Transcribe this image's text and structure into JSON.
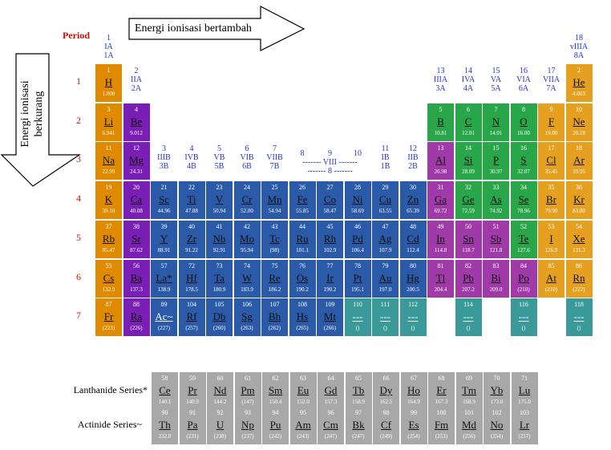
{
  "labels": {
    "period": "Period",
    "arrow_right": "Energi ionisasi bertambah",
    "arrow_down_line1": "Energi ionisasi",
    "arrow_down_line2": "berkurang",
    "lanthanide": "Lanthanide Series*",
    "actinide": "Actinide Series~"
  },
  "periods": [
    "1",
    "2",
    "3",
    "4",
    "5",
    "6",
    "7"
  ],
  "groups": [
    {
      "col": 1,
      "row": 0,
      "lines": [
        "1",
        "IA",
        "1A"
      ]
    },
    {
      "col": 2,
      "row": 1,
      "lines": [
        "2",
        "IIA",
        "2A"
      ]
    },
    {
      "col": 3,
      "row": 3,
      "lines": [
        "3",
        "IIIB",
        "3B"
      ]
    },
    {
      "col": 4,
      "row": 3,
      "lines": [
        "4",
        "IVB",
        "4B"
      ]
    },
    {
      "col": 5,
      "row": 3,
      "lines": [
        "5",
        "VB",
        "5B"
      ]
    },
    {
      "col": 6,
      "row": 3,
      "lines": [
        "6",
        "VIB",
        "6B"
      ]
    },
    {
      "col": 7,
      "row": 3,
      "lines": [
        "7",
        "VIIB",
        "7B"
      ]
    },
    {
      "col": 8,
      "row": 3,
      "lines": [
        "8",
        ""
      ]
    },
    {
      "col": 9,
      "row": 3,
      "lines": [
        "9",
        "------- VIII -------",
        "------- 8 -------"
      ]
    },
    {
      "col": 10,
      "row": 3,
      "lines": [
        "10",
        ""
      ]
    },
    {
      "col": 11,
      "row": 3,
      "lines": [
        "11",
        "IB",
        "1B"
      ]
    },
    {
      "col": 12,
      "row": 3,
      "lines": [
        "12",
        "IIB",
        "2B"
      ]
    },
    {
      "col": 13,
      "row": 1,
      "lines": [
        "13",
        "IIIA",
        "3A"
      ]
    },
    {
      "col": 14,
      "row": 1,
      "lines": [
        "14",
        "IVA",
        "4A"
      ]
    },
    {
      "col": 15,
      "row": 1,
      "lines": [
        "15",
        "VA",
        "5A"
      ]
    },
    {
      "col": 16,
      "row": 1,
      "lines": [
        "16",
        "VIA",
        "6A"
      ]
    },
    {
      "col": 17,
      "row": 1,
      "lines": [
        "17",
        "VIIA",
        "7A"
      ]
    },
    {
      "col": 18,
      "row": 0,
      "lines": [
        "18",
        "vIIIA",
        "8A"
      ]
    }
  ],
  "colors": {
    "alkali": "#e08a00",
    "alkaline": "#7a1fb5",
    "transition": "#2a5aa8",
    "unknown": "#3a9a9a",
    "post": "#a03aa8",
    "metalloid": "#2aa64a",
    "nonmetal": "#2aa64a",
    "halogen": "#e5a020",
    "noble": "#e5a020",
    "hydrogen": "#e08a00",
    "series": "#a8a8a8"
  },
  "elements": [
    {
      "n": "1",
      "s": "H",
      "m": "1.008",
      "c": 1,
      "r": 1,
      "t": "hydrogen",
      "d": 1
    },
    {
      "n": "2",
      "s": "He",
      "m": "4.003",
      "c": 18,
      "r": 1,
      "t": "noble",
      "d": 1
    },
    {
      "n": "3",
      "s": "Li",
      "m": "6.941",
      "c": 1,
      "r": 2,
      "t": "alkali",
      "d": 1
    },
    {
      "n": "4",
      "s": "Be",
      "m": "9.012",
      "c": 2,
      "r": 2,
      "t": "alkaline",
      "d": 1
    },
    {
      "n": "5",
      "s": "B",
      "m": "10.81",
      "c": 13,
      "r": 2,
      "t": "metalloid",
      "d": 1
    },
    {
      "n": "6",
      "s": "C",
      "m": "12.01",
      "c": 14,
      "r": 2,
      "t": "nonmetal",
      "d": 1
    },
    {
      "n": "7",
      "s": "N",
      "m": "14.01",
      "c": 15,
      "r": 2,
      "t": "nonmetal",
      "d": 1
    },
    {
      "n": "8",
      "s": "O",
      "m": "16.00",
      "c": 16,
      "r": 2,
      "t": "nonmetal",
      "d": 1
    },
    {
      "n": "9",
      "s": "F",
      "m": "19.00",
      "c": 17,
      "r": 2,
      "t": "halogen",
      "d": 1
    },
    {
      "n": "10",
      "s": "Ne",
      "m": "20.18",
      "c": 18,
      "r": 2,
      "t": "noble",
      "d": 1
    },
    {
      "n": "11",
      "s": "Na",
      "m": "22.99",
      "c": 1,
      "r": 3,
      "t": "alkali",
      "d": 1
    },
    {
      "n": "12",
      "s": "Mg",
      "m": "24.31",
      "c": 2,
      "r": 3,
      "t": "alkaline",
      "d": 1
    },
    {
      "n": "13",
      "s": "Al",
      "m": "26.98",
      "c": 13,
      "r": 3,
      "t": "post",
      "d": 1
    },
    {
      "n": "14",
      "s": "Si",
      "m": "28.09",
      "c": 14,
      "r": 3,
      "t": "metalloid",
      "d": 1
    },
    {
      "n": "15",
      "s": "P",
      "m": "30.97",
      "c": 15,
      "r": 3,
      "t": "nonmetal",
      "d": 1
    },
    {
      "n": "16",
      "s": "S",
      "m": "32.07",
      "c": 16,
      "r": 3,
      "t": "nonmetal",
      "d": 1
    },
    {
      "n": "17",
      "s": "Cl",
      "m": "35.45",
      "c": 17,
      "r": 3,
      "t": "halogen",
      "d": 1
    },
    {
      "n": "18",
      "s": "Ar",
      "m": "39.95",
      "c": 18,
      "r": 3,
      "t": "noble",
      "d": 1
    },
    {
      "n": "19",
      "s": "K",
      "m": "39.10",
      "c": 1,
      "r": 4,
      "t": "alkali",
      "d": 1
    },
    {
      "n": "20",
      "s": "Ca",
      "m": "40.08",
      "c": 2,
      "r": 4,
      "t": "alkaline",
      "d": 1
    },
    {
      "n": "21",
      "s": "Sc",
      "m": "44.96",
      "c": 3,
      "r": 4,
      "t": "transition",
      "d": 1
    },
    {
      "n": "22",
      "s": "Ti",
      "m": "47.88",
      "c": 4,
      "r": 4,
      "t": "transition",
      "d": 1
    },
    {
      "n": "23",
      "s": "V",
      "m": "50.94",
      "c": 5,
      "r": 4,
      "t": "transition",
      "d": 1
    },
    {
      "n": "24",
      "s": "Cr",
      "m": "52.00",
      "c": 6,
      "r": 4,
      "t": "transition",
      "d": 1
    },
    {
      "n": "25",
      "s": "Mn",
      "m": "54.94",
      "c": 7,
      "r": 4,
      "t": "transition",
      "d": 1
    },
    {
      "n": "26",
      "s": "Fe",
      "m": "55.85",
      "c": 8,
      "r": 4,
      "t": "transition",
      "d": 1
    },
    {
      "n": "27",
      "s": "Co",
      "m": "58.47",
      "c": 9,
      "r": 4,
      "t": "transition",
      "d": 1
    },
    {
      "n": "28",
      "s": "Ni",
      "m": "58.69",
      "c": 10,
      "r": 4,
      "t": "transition",
      "d": 1
    },
    {
      "n": "29",
      "s": "Cu",
      "m": "63.55",
      "c": 11,
      "r": 4,
      "t": "transition",
      "d": 1
    },
    {
      "n": "30",
      "s": "Zn",
      "m": "65.39",
      "c": 12,
      "r": 4,
      "t": "transition",
      "d": 1
    },
    {
      "n": "31",
      "s": "Ga",
      "m": "69.72",
      "c": 13,
      "r": 4,
      "t": "post",
      "d": 1
    },
    {
      "n": "32",
      "s": "Ge",
      "m": "72.59",
      "c": 14,
      "r": 4,
      "t": "metalloid",
      "d": 1
    },
    {
      "n": "33",
      "s": "As",
      "m": "74.92",
      "c": 15,
      "r": 4,
      "t": "metalloid",
      "d": 1
    },
    {
      "n": "34",
      "s": "Se",
      "m": "78.96",
      "c": 16,
      "r": 4,
      "t": "nonmetal",
      "d": 1
    },
    {
      "n": "35",
      "s": "Br",
      "m": "79.90",
      "c": 17,
      "r": 4,
      "t": "halogen",
      "d": 1
    },
    {
      "n": "36",
      "s": "Kr",
      "m": "83.80",
      "c": 18,
      "r": 4,
      "t": "noble",
      "d": 1
    },
    {
      "n": "37",
      "s": "Rb",
      "m": "85.47",
      "c": 1,
      "r": 5,
      "t": "alkali",
      "d": 1
    },
    {
      "n": "38",
      "s": "Sr",
      "m": "87.62",
      "c": 2,
      "r": 5,
      "t": "alkaline",
      "d": 1
    },
    {
      "n": "39",
      "s": "Y",
      "m": "88.91",
      "c": 3,
      "r": 5,
      "t": "transition",
      "d": 1
    },
    {
      "n": "40",
      "s": "Zr",
      "m": "91.22",
      "c": 4,
      "r": 5,
      "t": "transition",
      "d": 1
    },
    {
      "n": "41",
      "s": "Nb",
      "m": "92.91",
      "c": 5,
      "r": 5,
      "t": "transition",
      "d": 1
    },
    {
      "n": "42",
      "s": "Mo",
      "m": "95.94",
      "c": 6,
      "r": 5,
      "t": "transition",
      "d": 1
    },
    {
      "n": "43",
      "s": "Tc",
      "m": "(98)",
      "c": 7,
      "r": 5,
      "t": "transition",
      "d": 1
    },
    {
      "n": "44",
      "s": "Ru",
      "m": "101.1",
      "c": 8,
      "r": 5,
      "t": "transition",
      "d": 1
    },
    {
      "n": "45",
      "s": "Rh",
      "m": "102.9",
      "c": 9,
      "r": 5,
      "t": "transition",
      "d": 1
    },
    {
      "n": "46",
      "s": "Pd",
      "m": "106.4",
      "c": 10,
      "r": 5,
      "t": "transition",
      "d": 1
    },
    {
      "n": "47",
      "s": "Ag",
      "m": "107.9",
      "c": 11,
      "r": 5,
      "t": "transition",
      "d": 1
    },
    {
      "n": "48",
      "s": "Cd",
      "m": "112.4",
      "c": 12,
      "r": 5,
      "t": "transition",
      "d": 1
    },
    {
      "n": "49",
      "s": "In",
      "m": "114.8",
      "c": 13,
      "r": 5,
      "t": "post",
      "d": 1
    },
    {
      "n": "50",
      "s": "Sn",
      "m": "118.7",
      "c": 14,
      "r": 5,
      "t": "post",
      "d": 1
    },
    {
      "n": "51",
      "s": "Sb",
      "m": "121.8",
      "c": 15,
      "r": 5,
      "t": "post",
      "d": 1
    },
    {
      "n": "52",
      "s": "Te",
      "m": "127.6",
      "c": 16,
      "r": 5,
      "t": "metalloid",
      "d": 1
    },
    {
      "n": "53",
      "s": "I",
      "m": "126.9",
      "c": 17,
      "r": 5,
      "t": "halogen",
      "d": 1
    },
    {
      "n": "54",
      "s": "Xe",
      "m": "131.3",
      "c": 18,
      "r": 5,
      "t": "noble",
      "d": 1
    },
    {
      "n": "55",
      "s": "Cs",
      "m": "132.9",
      "c": 1,
      "r": 6,
      "t": "alkali",
      "d": 1
    },
    {
      "n": "56",
      "s": "Ba",
      "m": "137.3",
      "c": 2,
      "r": 6,
      "t": "alkaline",
      "d": 1
    },
    {
      "n": "57",
      "s": "La*",
      "m": "138.9",
      "c": 3,
      "r": 6,
      "t": "transition",
      "d": 1
    },
    {
      "n": "72",
      "s": "Hf",
      "m": "178.5",
      "c": 4,
      "r": 6,
      "t": "transition",
      "d": 1
    },
    {
      "n": "73",
      "s": "Ta",
      "m": "180.9",
      "c": 5,
      "r": 6,
      "t": "transition",
      "d": 1
    },
    {
      "n": "74",
      "s": "W",
      "m": "183.9",
      "c": 6,
      "r": 6,
      "t": "transition",
      "d": 1
    },
    {
      "n": "75",
      "s": "Re",
      "m": "186.2",
      "c": 7,
      "r": 6,
      "t": "transition",
      "d": 1
    },
    {
      "n": "76",
      "s": "Os",
      "m": "190.2",
      "c": 8,
      "r": 6,
      "t": "transition",
      "d": 1
    },
    {
      "n": "77",
      "s": "Ir",
      "m": "190.2",
      "c": 9,
      "r": 6,
      "t": "transition",
      "d": 1
    },
    {
      "n": "78",
      "s": "Pt",
      "m": "195.1",
      "c": 10,
      "r": 6,
      "t": "transition",
      "d": 1
    },
    {
      "n": "79",
      "s": "Au",
      "m": "197.0",
      "c": 11,
      "r": 6,
      "t": "transition",
      "d": 1
    },
    {
      "n": "80",
      "s": "Hg",
      "m": "200.5",
      "c": 12,
      "r": 6,
      "t": "transition",
      "d": 1
    },
    {
      "n": "81",
      "s": "Tl",
      "m": "204.4",
      "c": 13,
      "r": 6,
      "t": "post",
      "d": 1
    },
    {
      "n": "82",
      "s": "Pb",
      "m": "207.2",
      "c": 14,
      "r": 6,
      "t": "post",
      "d": 1
    },
    {
      "n": "83",
      "s": "Bi",
      "m": "209.0",
      "c": 15,
      "r": 6,
      "t": "post",
      "d": 1
    },
    {
      "n": "84",
      "s": "Po",
      "m": "(210)",
      "c": 16,
      "r": 6,
      "t": "post",
      "d": 1
    },
    {
      "n": "85",
      "s": "At",
      "m": "(210)",
      "c": 17,
      "r": 6,
      "t": "halogen",
      "d": 1
    },
    {
      "n": "86",
      "s": "Rn",
      "m": "(222)",
      "c": 18,
      "r": 6,
      "t": "noble",
      "d": 1
    },
    {
      "n": "87",
      "s": "Fr",
      "m": "(223)",
      "c": 1,
      "r": 7,
      "t": "alkali",
      "d": 1
    },
    {
      "n": "88",
      "s": "Ra",
      "m": "(226)",
      "c": 2,
      "r": 7,
      "t": "alkaline",
      "d": 1
    },
    {
      "n": "89",
      "s": "Ac~",
      "m": "(227)",
      "c": 3,
      "r": 7,
      "t": "transition",
      "d": 0
    },
    {
      "n": "104",
      "s": "Rf",
      "m": "(257)",
      "c": 4,
      "r": 7,
      "t": "transition",
      "d": 1
    },
    {
      "n": "105",
      "s": "Db",
      "m": "(260)",
      "c": 5,
      "r": 7,
      "t": "transition",
      "d": 1
    },
    {
      "n": "106",
      "s": "Sg",
      "m": "(263)",
      "c": 6,
      "r": 7,
      "t": "transition",
      "d": 1
    },
    {
      "n": "107",
      "s": "Bh",
      "m": "(262)",
      "c": 7,
      "r": 7,
      "t": "transition",
      "d": 1
    },
    {
      "n": "108",
      "s": "Hs",
      "m": "(265)",
      "c": 8,
      "r": 7,
      "t": "transition",
      "d": 1
    },
    {
      "n": "109",
      "s": "Mt",
      "m": "(266)",
      "c": 9,
      "r": 7,
      "t": "transition",
      "d": 1
    },
    {
      "n": "110",
      "s": "---",
      "m": "()",
      "c": 10,
      "r": 7,
      "t": "unknown",
      "d": 0
    },
    {
      "n": "111",
      "s": "---",
      "m": "()",
      "c": 11,
      "r": 7,
      "t": "unknown",
      "d": 0
    },
    {
      "n": "112",
      "s": "---",
      "m": "()",
      "c": 12,
      "r": 7,
      "t": "unknown",
      "d": 0
    },
    {
      "n": "114",
      "s": "---",
      "m": "()",
      "c": 14,
      "r": 7,
      "t": "unknown",
      "d": 0
    },
    {
      "n": "116",
      "s": "---",
      "m": "()",
      "c": 16,
      "r": 7,
      "t": "unknown",
      "d": 0
    },
    {
      "n": "118",
      "s": "---",
      "m": "()",
      "c": 18,
      "r": 7,
      "t": "unknown",
      "d": 0
    }
  ],
  "lanthanides": [
    {
      "n": "58",
      "s": "Ce",
      "m": "140.1"
    },
    {
      "n": "59",
      "s": "Pr",
      "m": "140.9"
    },
    {
      "n": "60",
      "s": "Nd",
      "m": "144.2"
    },
    {
      "n": "61",
      "s": "Pm",
      "m": "(147)"
    },
    {
      "n": "62",
      "s": "Sm",
      "m": "150.4"
    },
    {
      "n": "63",
      "s": "Eu",
      "m": "152.0"
    },
    {
      "n": "64",
      "s": "Gd",
      "m": "157.3"
    },
    {
      "n": "65",
      "s": "Tb",
      "m": "158.9"
    },
    {
      "n": "66",
      "s": "Dy",
      "m": "162.5"
    },
    {
      "n": "67",
      "s": "Ho",
      "m": "164.9"
    },
    {
      "n": "68",
      "s": "Er",
      "m": "167.3"
    },
    {
      "n": "69",
      "s": "Tm",
      "m": "168.9"
    },
    {
      "n": "70",
      "s": "Yb",
      "m": "173.0"
    },
    {
      "n": "71",
      "s": "Lu",
      "m": "175.0"
    }
  ],
  "actinides": [
    {
      "n": "90",
      "s": "Th",
      "m": "232.0"
    },
    {
      "n": "91",
      "s": "Pa",
      "m": "(231)"
    },
    {
      "n": "92",
      "s": "U",
      "m": "(238)"
    },
    {
      "n": "93",
      "s": "Np",
      "m": "(237)"
    },
    {
      "n": "94",
      "s": "Pu",
      "m": "(242)"
    },
    {
      "n": "95",
      "s": "Am",
      "m": "(243)"
    },
    {
      "n": "96",
      "s": "Cm",
      "m": "(247)"
    },
    {
      "n": "97",
      "s": "Bk",
      "m": "(247)"
    },
    {
      "n": "98",
      "s": "Cf",
      "m": "(249)"
    },
    {
      "n": "99",
      "s": "Es",
      "m": "(254)"
    },
    {
      "n": "100",
      "s": "Fm",
      "m": "(253)"
    },
    {
      "n": "101",
      "s": "Md",
      "m": "(256)"
    },
    {
      "n": "102",
      "s": "No",
      "m": "(254)"
    },
    {
      "n": "103",
      "s": "Lr",
      "m": "(257)"
    }
  ]
}
